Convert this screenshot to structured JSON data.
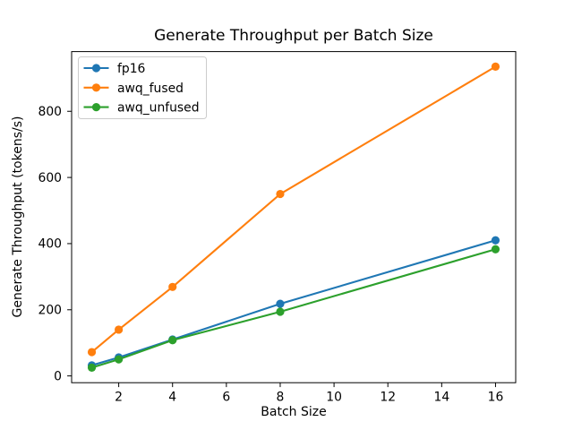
{
  "chart_data": {
    "type": "line",
    "title": "Generate Throughput per Batch Size",
    "xlabel": "Batch Size",
    "ylabel": "Generate Throughput (tokens/s)",
    "x": [
      1,
      2,
      4,
      8,
      16
    ],
    "series": [
      {
        "name": "fp16",
        "color": "#1f77b4",
        "marker": "circle",
        "values": [
          32,
          56,
          110,
          218,
          410
        ]
      },
      {
        "name": "awq_fused",
        "color": "#ff7f0e",
        "marker": "circle",
        "values": [
          72,
          140,
          269,
          550,
          935
        ]
      },
      {
        "name": "awq_unfused",
        "color": "#2ca02c",
        "marker": "circle",
        "values": [
          25,
          50,
          108,
          194,
          383
        ]
      }
    ],
    "xticks": [
      2,
      4,
      6,
      8,
      10,
      12,
      14,
      16
    ],
    "yticks": [
      0,
      200,
      400,
      600,
      800
    ],
    "xlim": [
      0.25,
      16.75
    ],
    "ylim": [
      -20.5,
      980.5
    ],
    "grid": false,
    "legend_position": "upper-left",
    "axis_color": "#000000",
    "legend_border_color": "#cccccc",
    "background_color": "#ffffff"
  }
}
